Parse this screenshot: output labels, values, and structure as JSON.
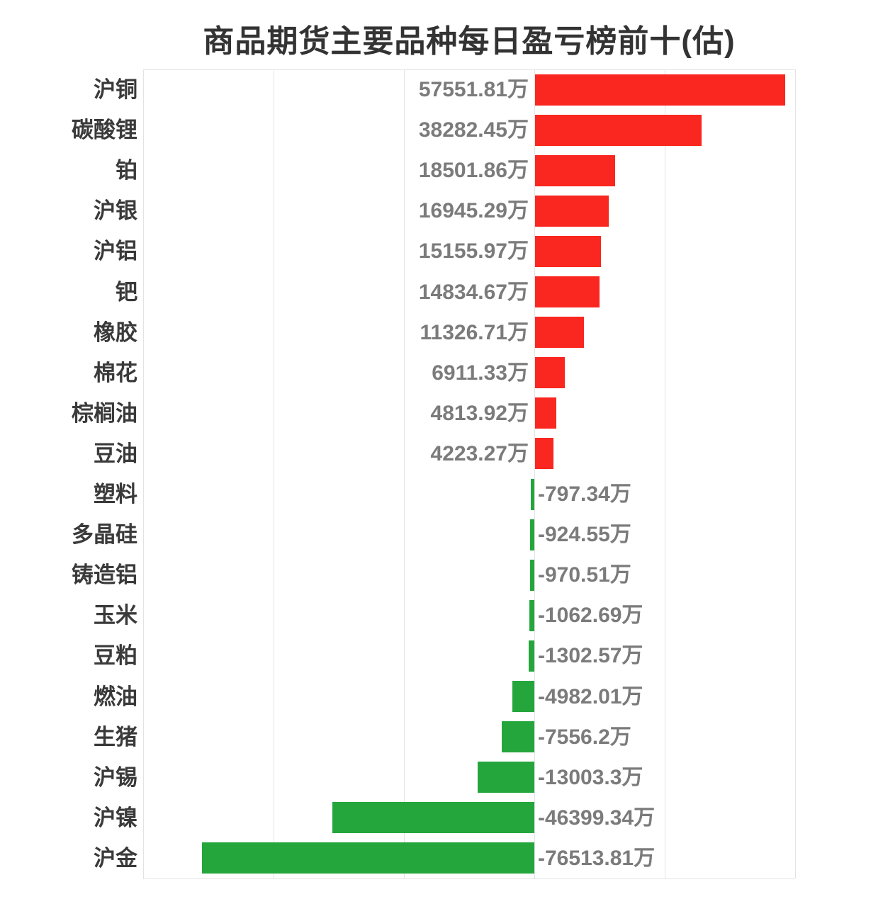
{
  "chart_data": {
    "type": "bar",
    "orientation": "horizontal",
    "title": "商品期货主要品种每日盈亏榜前十(估)",
    "unit": "万",
    "categories": [
      "沪铜",
      "碳酸锂",
      "铂",
      "沪银",
      "沪铝",
      "钯",
      "橡胶",
      "棉花",
      "棕榈油",
      "豆油",
      "塑料",
      "多晶硅",
      "铸造铝",
      "玉米",
      "豆粕",
      "燃油",
      "生猪",
      "沪锡",
      "沪镍",
      "沪金"
    ],
    "values": [
      57551.81,
      38282.45,
      18501.86,
      16945.29,
      15155.97,
      14834.67,
      11326.71,
      6911.33,
      4813.92,
      4223.27,
      -797.34,
      -924.55,
      -970.51,
      -1062.69,
      -1302.57,
      -4982.01,
      -7556.2,
      -13003.3,
      -46399.34,
      -76513.81
    ],
    "value_labels": [
      "57551.81万",
      "38282.45万",
      "18501.86万",
      "16945.29万",
      "15155.97万",
      "14834.67万",
      "11326.71万",
      "6911.33万",
      "4813.92万",
      "4223.27万",
      "-797.34万",
      "-924.55万",
      "-970.51万",
      "-1062.69万",
      "-1302.57万",
      "-4982.01万",
      "-7556.2万",
      "-13003.3万",
      "-46399.34万",
      "-76513.81万"
    ],
    "xlabel": "",
    "ylabel": "",
    "xlim": [
      -90000,
      60000
    ],
    "grid_step": 30000,
    "grid": true,
    "legend": false,
    "colors": {
      "positive_bar": "#F9271F",
      "negative_bar": "#25A63C",
      "grid_line": "#E3E3E3",
      "category_text": "#3A3A3A",
      "value_text": "#7B7B7B",
      "title_text": "#333333",
      "background": "#FFFFFF"
    }
  }
}
